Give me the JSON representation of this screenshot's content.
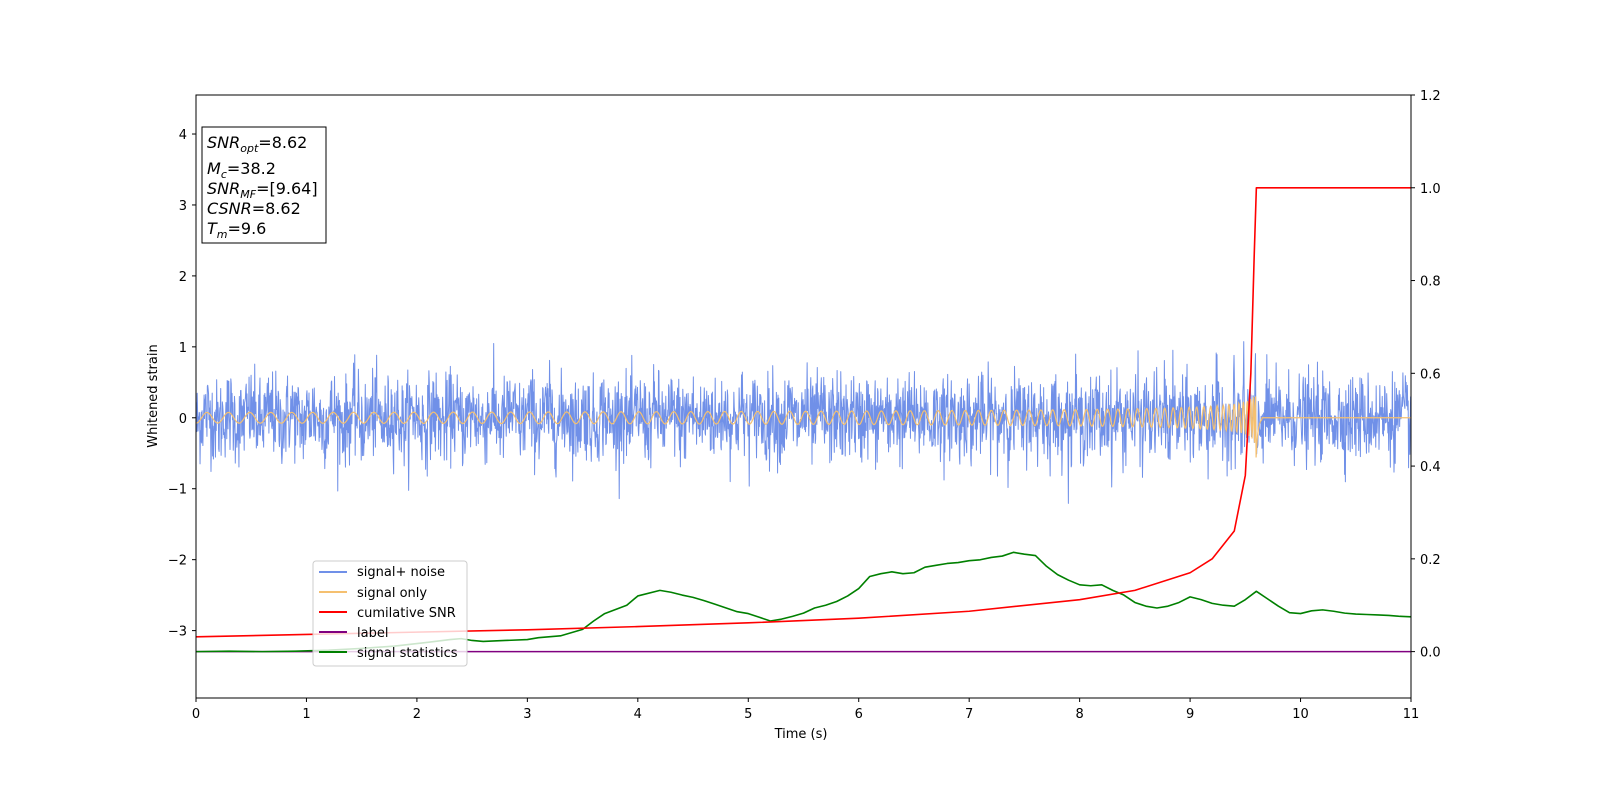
{
  "chart_data": {
    "type": "line",
    "xlabel": "Time (s)",
    "ylabel_left": "Whitened strain",
    "ylabel_right": "",
    "xlim": [
      0,
      11
    ],
    "ylim_left": [
      -3.95,
      4.55
    ],
    "ylim_right": [
      -0.1,
      1.2
    ],
    "xticks": [
      "0",
      "1",
      "2",
      "3",
      "4",
      "5",
      "6",
      "7",
      "8",
      "9",
      "10",
      "11"
    ],
    "yticks_left": [
      "4",
      "3",
      "2",
      "1",
      "0",
      "−1",
      "−2",
      "−3"
    ],
    "yticks_left_values": [
      4,
      3,
      2,
      1,
      0,
      -1,
      -2,
      -3
    ],
    "yticks_right": [
      "1.2",
      "1.0",
      "0.8",
      "0.6",
      "0.4",
      "0.2",
      "0.0"
    ],
    "yticks_right_values": [
      1.2,
      1.0,
      0.8,
      0.6,
      0.4,
      0.2,
      0.0
    ],
    "grid": false,
    "legend_placement": "lower-left",
    "info_box": [
      {
        "name": "SNR",
        "sub": "opt",
        "value": "=8.62"
      },
      {
        "name": "M",
        "sub": "c",
        "value": "=38.2"
      },
      {
        "name": "SNR",
        "sub": "MF",
        "value": "=[9.64]"
      },
      {
        "name": "CSNR",
        "sub": "",
        "value": "=8.62"
      },
      {
        "name": "T",
        "sub": "m",
        "value": "=9.6"
      }
    ],
    "series": [
      {
        "name": "signal+ noise",
        "axis": "left",
        "color": "#7090e8",
        "kind": "noise",
        "amplitude_std": 0.3,
        "range": [
          -1.33,
          1.25
        ]
      },
      {
        "name": "signal only",
        "axis": "left",
        "color": "#f5c070",
        "kind": "chirp",
        "merger_time": 9.6,
        "peak_amplitude": 0.62
      },
      {
        "name": "cumilative SNR",
        "axis": "right",
        "color": "#ff0000",
        "x": [
          0,
          1,
          2,
          3,
          4,
          5,
          6,
          7,
          8,
          8.5,
          9,
          9.2,
          9.4,
          9.5,
          9.55,
          9.58,
          9.6,
          9.62,
          11
        ],
        "y": [
          0.032,
          0.037,
          0.042,
          0.047,
          0.054,
          0.062,
          0.072,
          0.087,
          0.112,
          0.132,
          0.17,
          0.2,
          0.26,
          0.38,
          0.6,
          0.85,
          1.0,
          1.0,
          1.0
        ]
      },
      {
        "name": "label",
        "axis": "right",
        "color": "#800080",
        "x": [
          0,
          11
        ],
        "y": [
          0,
          0
        ]
      },
      {
        "name": "signal statistics",
        "axis": "right",
        "color": "#008000",
        "x": [
          0,
          0.3,
          0.6,
          0.9,
          1.2,
          1.5,
          1.8,
          2.1,
          2.3,
          2.4,
          2.5,
          2.6,
          2.8,
          3.0,
          3.1,
          3.3,
          3.5,
          3.6,
          3.7,
          3.9,
          4.0,
          4.2,
          4.3,
          4.4,
          4.5,
          4.6,
          4.7,
          4.8,
          4.9,
          5.0,
          5.1,
          5.2,
          5.3,
          5.4,
          5.5,
          5.6,
          5.7,
          5.8,
          5.9,
          6.0,
          6.1,
          6.2,
          6.3,
          6.4,
          6.5,
          6.6,
          6.7,
          6.8,
          6.9,
          7.0,
          7.1,
          7.2,
          7.3,
          7.4,
          7.5,
          7.6,
          7.7,
          7.8,
          7.9,
          8.0,
          8.1,
          8.2,
          8.3,
          8.4,
          8.5,
          8.6,
          8.7,
          8.8,
          8.9,
          9.0,
          9.1,
          9.2,
          9.3,
          9.4,
          9.5,
          9.6,
          9.7,
          9.8,
          9.9,
          10.0,
          10.1,
          10.2,
          10.3,
          10.4,
          10.5,
          10.6,
          10.7,
          10.8,
          10.9,
          11.0
        ],
        "y": [
          0.0,
          0.001,
          0.0,
          0.001,
          0.003,
          0.007,
          0.012,
          0.02,
          0.026,
          0.028,
          0.024,
          0.022,
          0.024,
          0.026,
          0.03,
          0.034,
          0.048,
          0.066,
          0.082,
          0.1,
          0.12,
          0.132,
          0.128,
          0.122,
          0.117,
          0.11,
          0.102,
          0.094,
          0.086,
          0.082,
          0.074,
          0.066,
          0.07,
          0.076,
          0.083,
          0.094,
          0.1,
          0.108,
          0.12,
          0.136,
          0.162,
          0.168,
          0.172,
          0.168,
          0.17,
          0.182,
          0.186,
          0.19,
          0.192,
          0.196,
          0.198,
          0.203,
          0.206,
          0.214,
          0.21,
          0.207,
          0.184,
          0.166,
          0.154,
          0.144,
          0.142,
          0.144,
          0.132,
          0.122,
          0.106,
          0.098,
          0.094,
          0.098,
          0.106,
          0.118,
          0.112,
          0.104,
          0.1,
          0.098,
          0.112,
          0.13,
          0.114,
          0.098,
          0.084,
          0.082,
          0.088,
          0.09,
          0.087,
          0.083,
          0.081,
          0.08,
          0.079,
          0.078,
          0.076,
          0.075
        ]
      }
    ]
  }
}
